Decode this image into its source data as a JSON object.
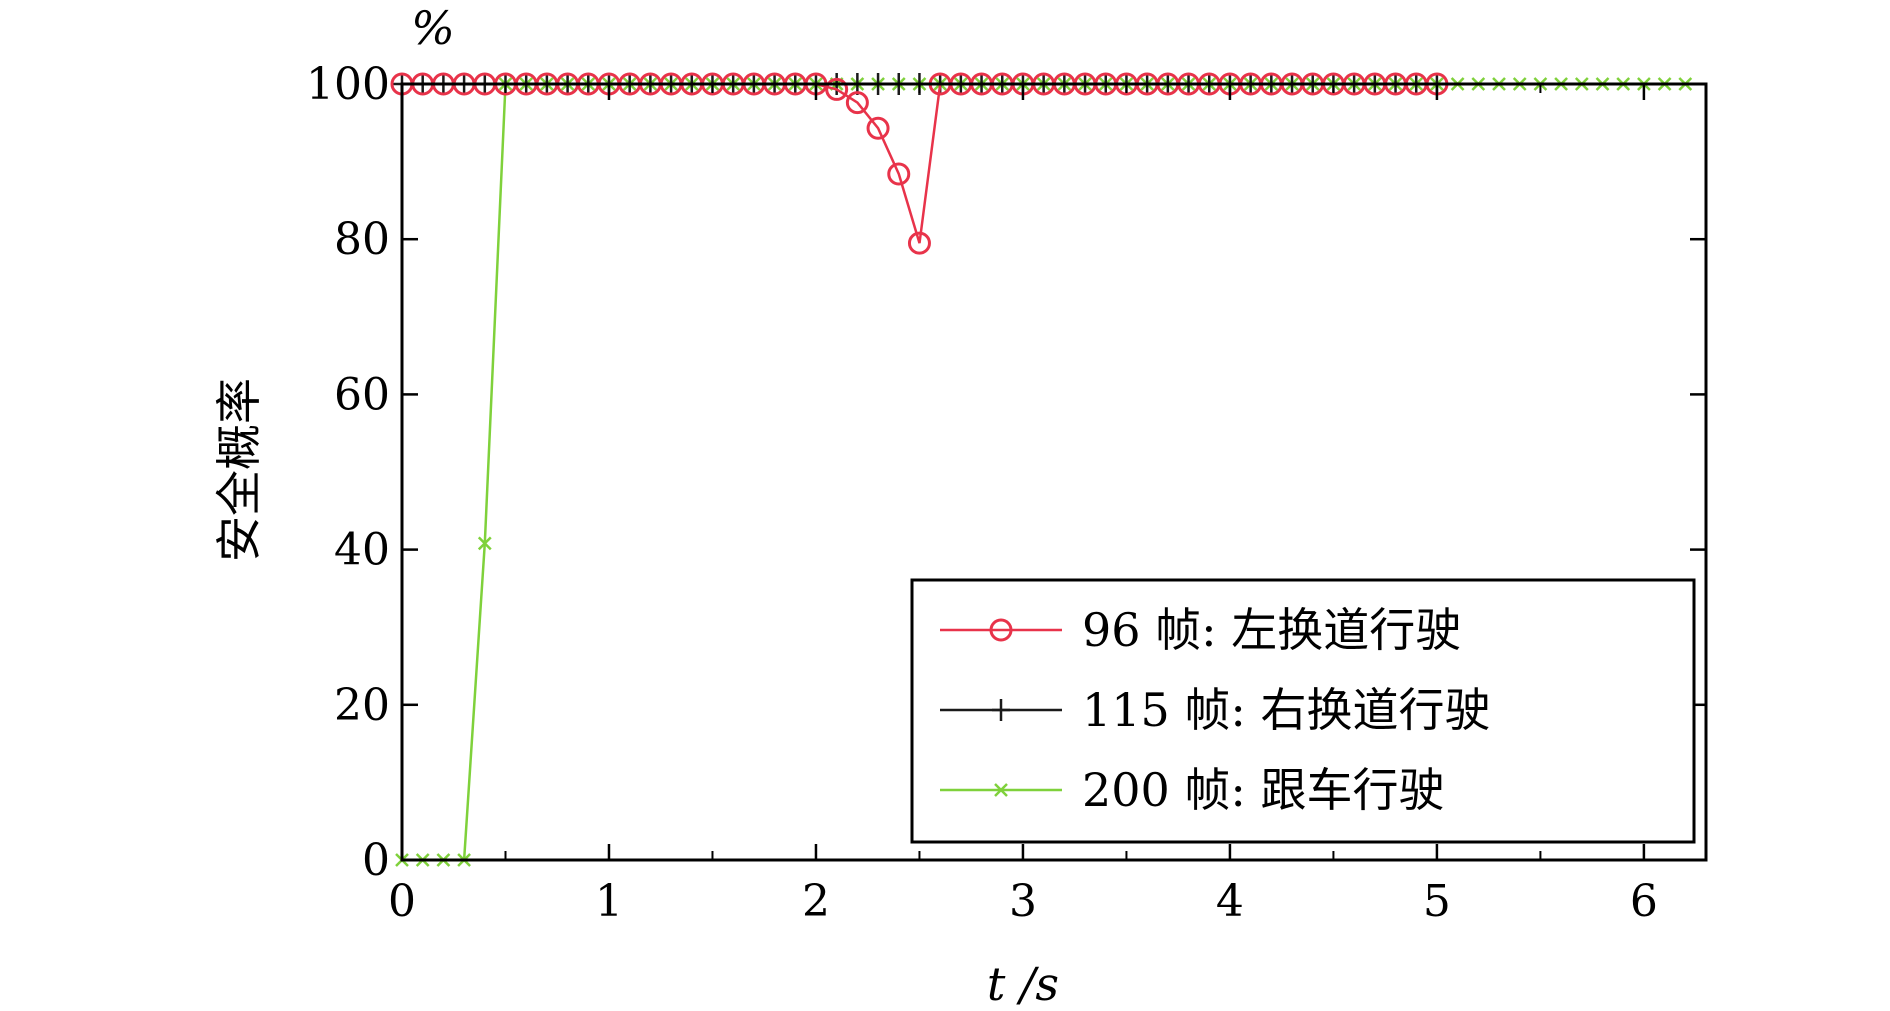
{
  "chart_data": {
    "type": "line",
    "title": "",
    "xlabel": "t /s",
    "ylabel": "安全概率",
    "yunit": "%",
    "xlim": [
      0,
      6.3
    ],
    "ylim": [
      0,
      100
    ],
    "xticks": [
      "0",
      "1",
      "2",
      "3",
      "4",
      "5",
      "6"
    ],
    "yticks": [
      "0",
      "20",
      "40",
      "60",
      "80",
      "100"
    ],
    "grid": false,
    "legend_position": "bottom-right",
    "series": [
      {
        "name": "96 帧: 左换道行驶",
        "color": "#e8334a",
        "marker": "circle",
        "x": [
          0,
          0.1,
          0.2,
          0.3,
          0.4,
          0.5,
          0.6,
          0.7,
          0.8,
          0.9,
          1.0,
          1.1,
          1.2,
          1.3,
          1.4,
          1.5,
          1.6,
          1.7,
          1.8,
          1.9,
          2.0,
          2.1,
          2.2,
          2.3,
          2.4,
          2.5,
          2.6,
          2.7,
          2.8,
          2.9,
          3.0,
          3.1,
          3.2,
          3.3,
          3.4,
          3.5,
          3.6,
          3.7,
          3.8,
          3.9,
          4.0,
          4.1,
          4.2,
          4.3,
          4.4,
          4.5,
          4.6,
          4.7,
          4.8,
          4.9,
          5.0
        ],
        "y": [
          100,
          100,
          100,
          100,
          100,
          100,
          100,
          100,
          100,
          100,
          100,
          100,
          100,
          100,
          100,
          100,
          100,
          100,
          100,
          100,
          100,
          99.3,
          97.6,
          94.3,
          88.4,
          79.5,
          100,
          100,
          100,
          100,
          100,
          100,
          100,
          100,
          100,
          100,
          100,
          100,
          100,
          100,
          100,
          100,
          100,
          100,
          100,
          100,
          100,
          100,
          100,
          100,
          100
        ]
      },
      {
        "name": "115 帧: 右换道行驶",
        "color": "#1a1a1a",
        "marker": "plus",
        "x": [
          0,
          0.1,
          0.2,
          0.3,
          0.4,
          0.5,
          0.6,
          0.7,
          0.8,
          0.9,
          1.0,
          1.1,
          1.2,
          1.3,
          1.4,
          1.5,
          1.6,
          1.7,
          1.8,
          1.9,
          2.0,
          2.1,
          2.2,
          2.3,
          2.4,
          2.5,
          2.6,
          2.7,
          2.8,
          2.9,
          3.0,
          3.1,
          3.2,
          3.3,
          3.4,
          3.5,
          3.6,
          3.7,
          3.8,
          3.9,
          4.0,
          4.1,
          4.2,
          4.3,
          4.4,
          4.5,
          4.6,
          4.7,
          4.8,
          4.9,
          5.0
        ],
        "y": [
          100,
          100,
          100,
          100,
          100,
          100,
          100,
          100,
          100,
          100,
          100,
          100,
          100,
          100,
          100,
          100,
          100,
          100,
          100,
          100,
          100,
          100,
          100,
          100,
          100,
          100,
          100,
          100,
          100,
          100,
          100,
          100,
          100,
          100,
          100,
          100,
          100,
          100,
          100,
          100,
          100,
          100,
          100,
          100,
          100,
          100,
          100,
          100,
          100,
          100,
          100
        ]
      },
      {
        "name": "200 帧: 跟车行驶",
        "color": "#7fd13b",
        "marker": "x",
        "x": [
          0,
          0.1,
          0.2,
          0.3,
          0.4,
          0.5,
          0.6,
          0.7,
          0.8,
          0.9,
          1.0,
          1.1,
          1.2,
          1.3,
          1.4,
          1.5,
          1.6,
          1.7,
          1.8,
          1.9,
          2.0,
          2.1,
          2.2,
          2.3,
          2.4,
          2.5,
          2.6,
          2.7,
          2.8,
          2.9,
          3.0,
          3.1,
          3.2,
          3.3,
          3.4,
          3.5,
          3.6,
          3.7,
          3.8,
          3.9,
          4.0,
          4.1,
          4.2,
          4.3,
          4.4,
          4.5,
          4.6,
          4.7,
          4.8,
          4.9,
          5.0,
          5.1,
          5.2,
          5.3,
          5.4,
          5.5,
          5.6,
          5.7,
          5.8,
          5.9,
          6.0,
          6.1,
          6.2
        ],
        "y": [
          0,
          0,
          0,
          0,
          40.8,
          100,
          100,
          100,
          100,
          100,
          100,
          100,
          100,
          100,
          100,
          100,
          100,
          100,
          100,
          100,
          100,
          100,
          100,
          100,
          100,
          100,
          100,
          100,
          100,
          100,
          100,
          100,
          100,
          100,
          100,
          100,
          100,
          100,
          100,
          100,
          100,
          100,
          100,
          100,
          100,
          100,
          100,
          100,
          100,
          100,
          100,
          100,
          100,
          100,
          100,
          100,
          100,
          100,
          100,
          100,
          100,
          100,
          100
        ]
      }
    ]
  }
}
